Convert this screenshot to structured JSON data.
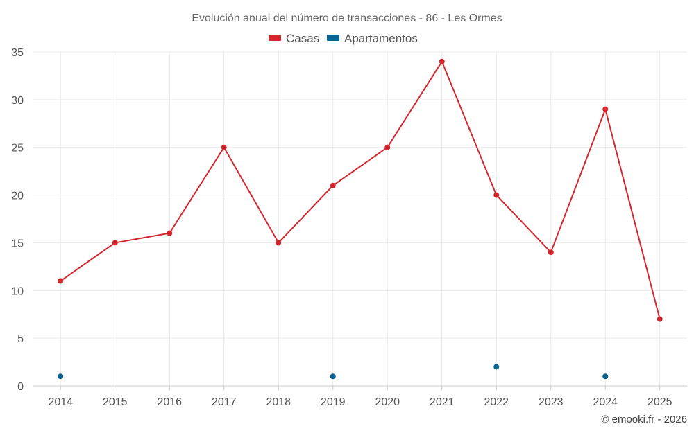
{
  "chart_data": {
    "type": "line",
    "title": "Evolución anual del número de transacciones - 86 - Les Ormes",
    "categories": [
      "2014",
      "2015",
      "2016",
      "2017",
      "2018",
      "2019",
      "2020",
      "2021",
      "2022",
      "2023",
      "2024",
      "2025"
    ],
    "ylim": [
      0,
      35
    ],
    "yticks": [
      0,
      5,
      10,
      15,
      20,
      25,
      30,
      35
    ],
    "grid": true,
    "legend_position": "top-center",
    "series": [
      {
        "name": "Casas",
        "color": "#d3272d",
        "values": [
          11,
          15,
          16,
          25,
          15,
          21,
          25,
          34,
          20,
          14,
          29,
          7
        ]
      },
      {
        "name": "Apartamentos",
        "color": "#0a6494",
        "values": [
          1,
          null,
          null,
          null,
          null,
          1,
          null,
          null,
          2,
          null,
          1,
          null
        ]
      }
    ],
    "credit": "© emooki.fr - 2026"
  }
}
